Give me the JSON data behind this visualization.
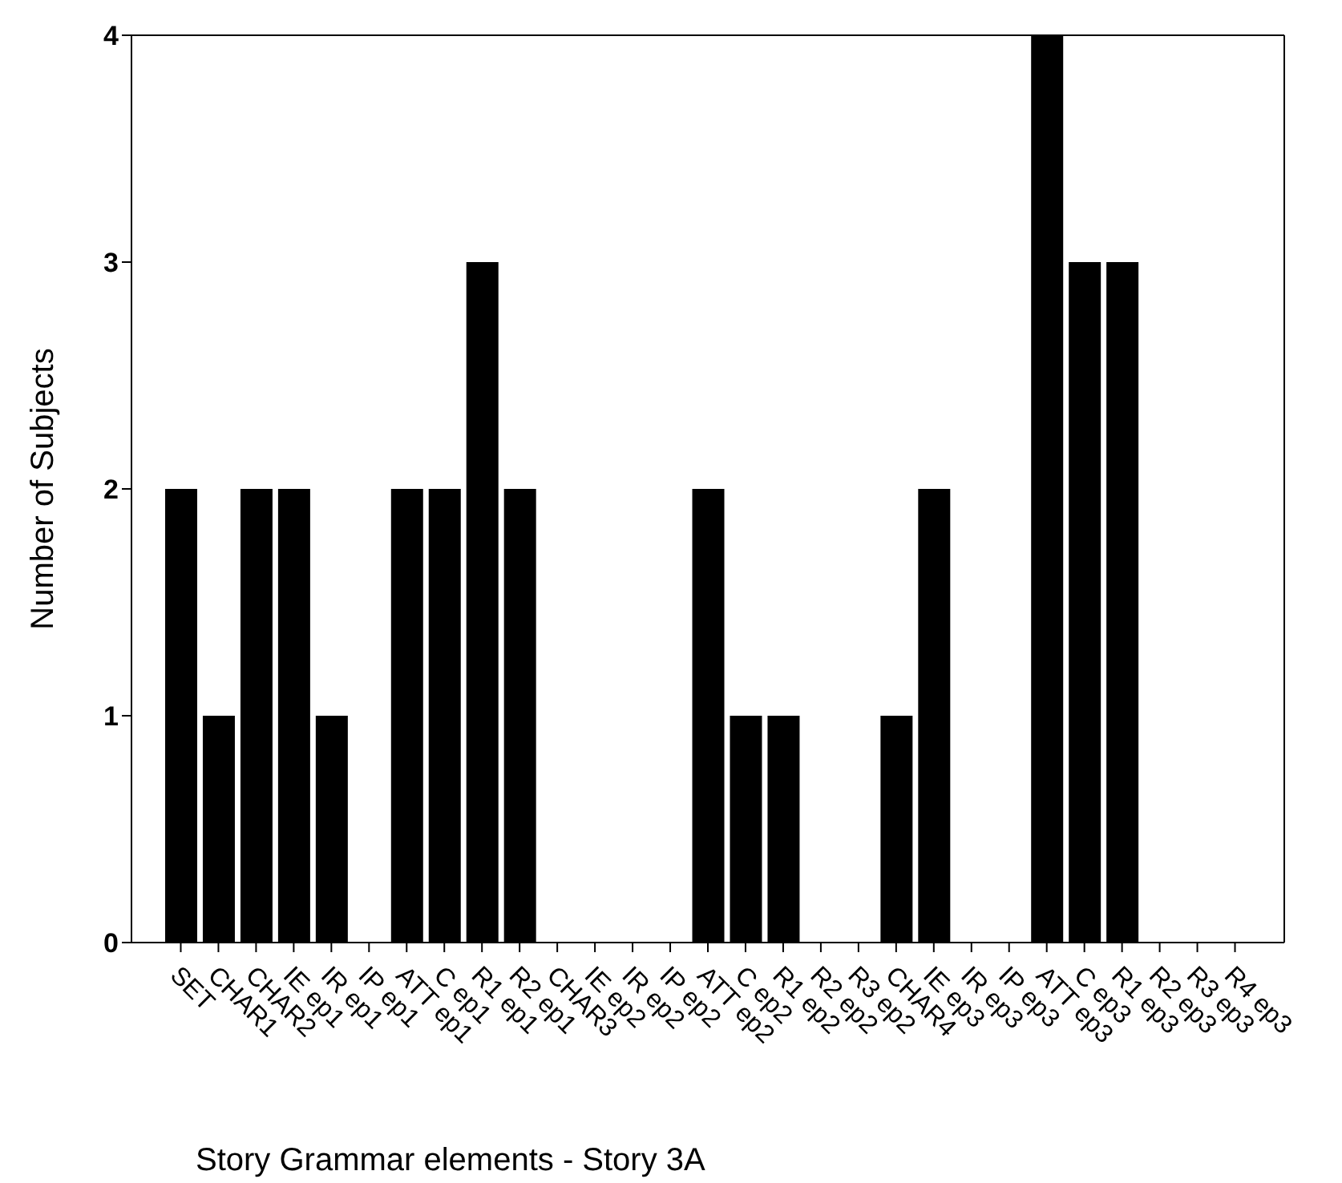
{
  "chart_data": {
    "type": "bar",
    "xlabel": "Story Grammar elements - Story 3A",
    "ylabel": "Number of Subjects",
    "categories": [
      "SET",
      "CHAR1",
      "CHAR2",
      "IE ep1",
      "IR ep1",
      "IP ep1",
      "ATT ep1",
      "C ep1",
      "R1 ep1",
      "R2 ep1",
      "CHAR3",
      "IE ep2",
      "IR ep2",
      "IP ep2",
      "ATT ep2",
      "C ep2",
      "R1 ep2",
      "R2 ep2",
      "R3 ep2",
      "CHAR4",
      "IE ep3",
      "IR ep3",
      "IP ep3",
      "ATT ep3",
      "C ep3",
      "R1 ep3",
      "R2 ep3",
      "R3 ep3",
      "R4 ep3"
    ],
    "values": [
      2,
      1,
      2,
      2,
      1,
      0,
      2,
      2,
      3,
      2,
      0,
      0,
      0,
      0,
      2,
      1,
      1,
      0,
      0,
      1,
      2,
      0,
      0,
      4,
      3,
      3,
      0,
      0,
      0
    ],
    "color": "#000000",
    "ylim": [
      0,
      4
    ],
    "yticks": [
      0,
      1,
      2,
      3,
      4
    ],
    "grid": false
  }
}
